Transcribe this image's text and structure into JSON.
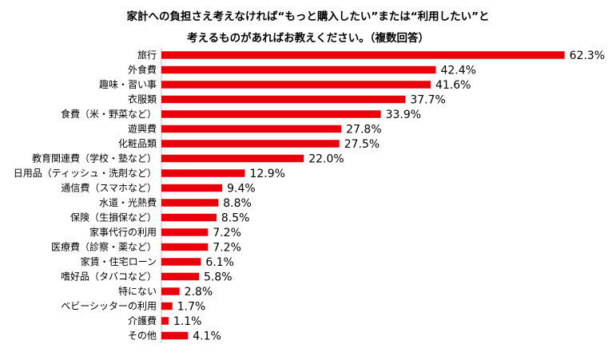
{
  "title_line1": "家計への負担さえ考えなければ“もっと購入したい”または“利用したい”と",
  "title_line2": "考えるものがあればお教えください。（複数回答）",
  "chart_data": {
    "type": "bar",
    "orientation": "horizontal",
    "categories": [
      "旅行",
      "外食費",
      "趣味・習い事",
      "衣服類",
      "食費（米・野菜など）",
      "遊興費",
      "化粧品類",
      "教育関連費（学校・塾など）",
      "日用品（ティッシュ・洗剤など）",
      "通信費（スマホなど）",
      "水道・光熱費",
      "保険（生損保など）",
      "家事代行の利用",
      "医療費（診察・薬など）",
      "家賃・住宅ローン",
      "嗜好品（タバコなど）",
      "特にない",
      "ベビーシッターの利用",
      "介護費",
      "その他"
    ],
    "values": [
      62.3,
      42.4,
      41.6,
      37.7,
      33.9,
      27.8,
      27.5,
      22.0,
      12.9,
      9.4,
      8.8,
      8.5,
      7.2,
      7.2,
      6.1,
      5.8,
      2.8,
      1.7,
      1.1,
      4.1
    ],
    "value_labels": [
      "62.3%",
      "42.4%",
      "41.6%",
      "37.7%",
      "33.9%",
      "27.8%",
      "27.5%",
      "22.0%",
      "12.9%",
      "9.4%",
      "8.8%",
      "8.5%",
      "7.2%",
      "7.2%",
      "6.1%",
      "5.8%",
      "2.8%",
      "1.7%",
      "1.1%",
      "4.1%"
    ],
    "bar_color": "#e8000b",
    "axis_color": "#bfbfbf",
    "grid": false,
    "legend": false
  }
}
